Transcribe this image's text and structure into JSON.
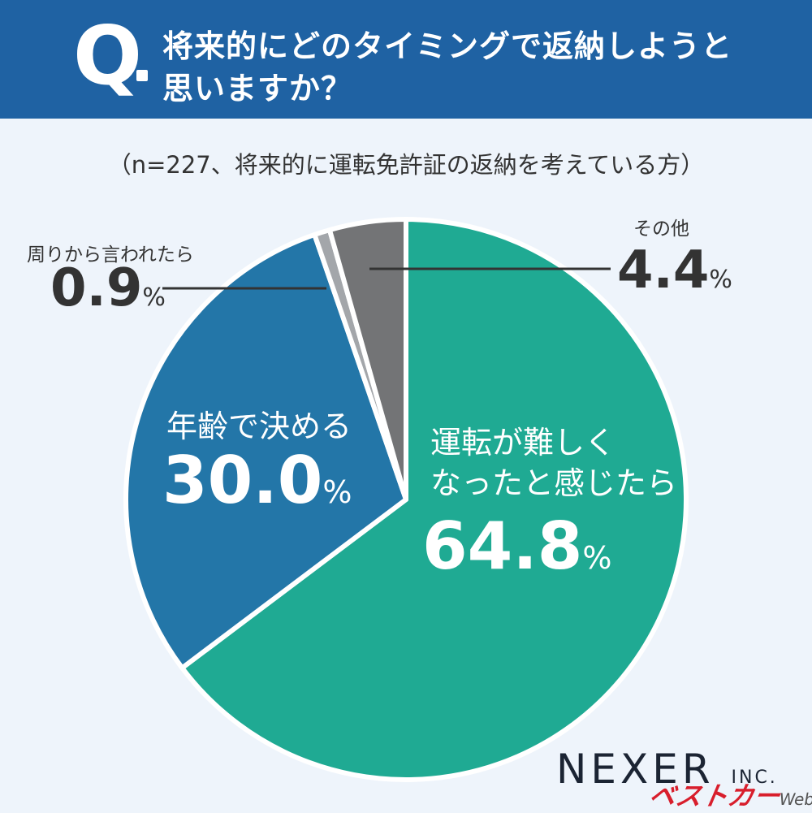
{
  "header": {
    "q": "Q",
    "line1": "将来的にどのタイミングで返納しようと",
    "line2": "思いますか？"
  },
  "subtitle": "（n=227、将来的に運転免許証の返納を考えている方）",
  "chart_data": {
    "type": "pie",
    "title": "将来的にどのタイミングで返納しようと思いますか？",
    "note": "（n=227、将来的に運転免許証の返納を考えている方）",
    "slices": [
      {
        "label": "運転が難しくなったと感じたら",
        "label_lines": [
          "運転が難しく",
          "なったと感じたら"
        ],
        "value": 64.8,
        "display": "64.8",
        "color": "#1faa93"
      },
      {
        "label": "年齢で決める",
        "label_lines": [
          "年齢で決める"
        ],
        "value": 30.0,
        "display": "30.0",
        "color": "#2376a8"
      },
      {
        "label": "周りから言われたら",
        "label_lines": [
          "周りから言われたら"
        ],
        "value": 0.9,
        "display": "0.9",
        "color": "#a3a6aa"
      },
      {
        "label": "その他",
        "label_lines": [
          "その他"
        ],
        "value": 4.4,
        "display": "4.4",
        "color": "#737476"
      }
    ],
    "unit": "%",
    "start": "12 o'clock",
    "direction": "clockwise"
  },
  "brand": {
    "name": "NEXER",
    "suffix": "INC."
  },
  "watermark": {
    "text": "ベストカー",
    "suffix": "Web"
  }
}
